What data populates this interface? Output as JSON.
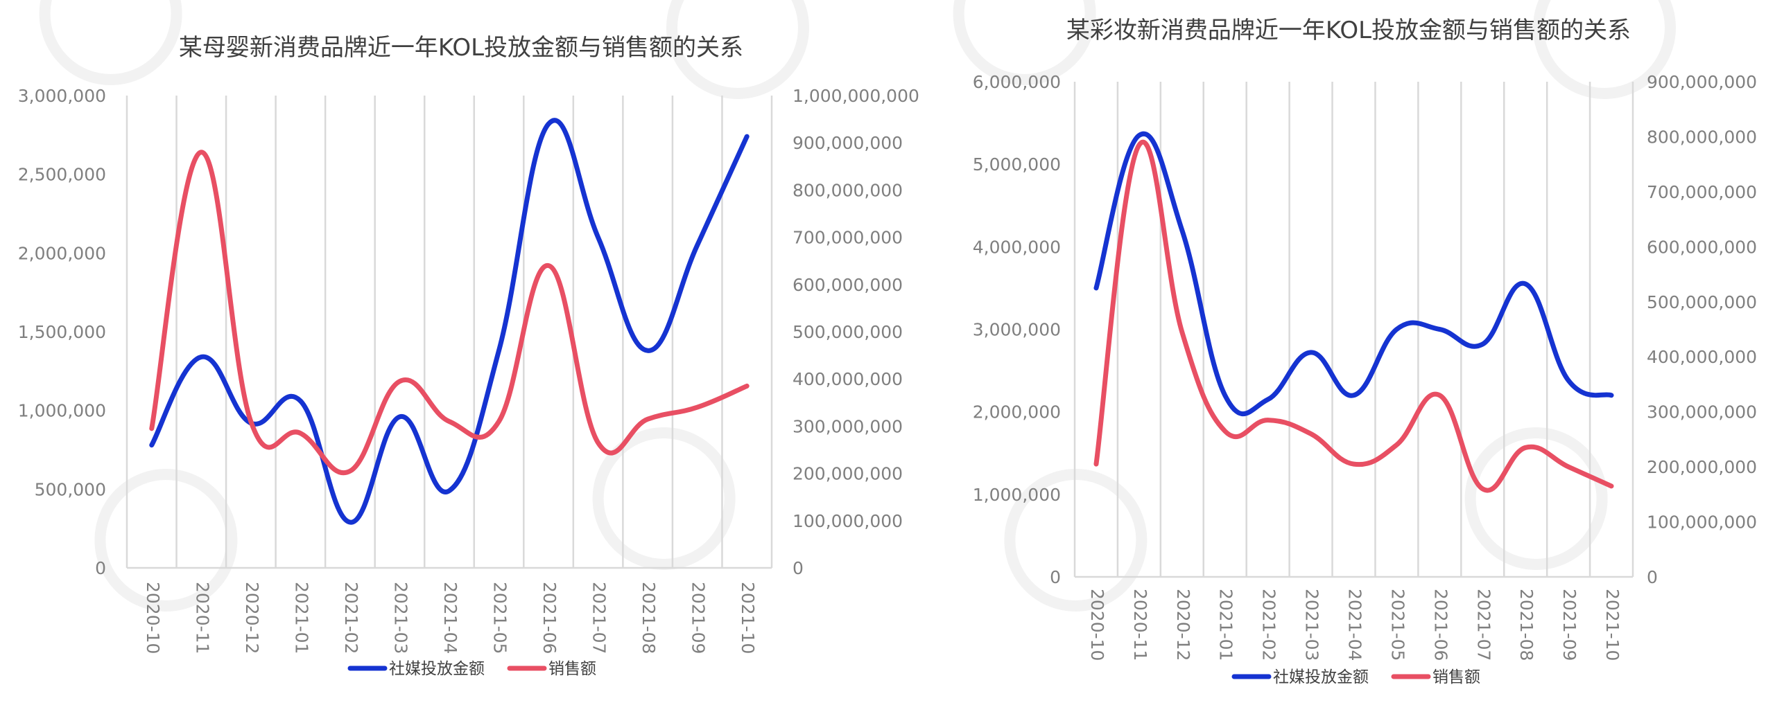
{
  "chart_data": [
    {
      "type": "line",
      "title": "某母婴新消费品牌近一年KOL投放金额与销售额的关系",
      "categories": [
        "2020-10",
        "2020-11",
        "2020-12",
        "2021-01",
        "2021-02",
        "2021-03",
        "2021-04",
        "2021-05",
        "2021-06",
        "2021-07",
        "2021-08",
        "2021-09",
        "2021-10"
      ],
      "y_left_ticks": [
        "0",
        "500,000",
        "1,000,000",
        "1,500,000",
        "2,000,000",
        "2,500,000",
        "3,000,000"
      ],
      "y_right_ticks": [
        "0",
        "100,000,000",
        "200,000,000",
        "300,000,000",
        "400,000,000",
        "500,000,000",
        "600,000,000",
        "700,000,000",
        "800,000,000",
        "900,000,000",
        "1,000,000,000"
      ],
      "ylim_left": [
        0,
        3000000
      ],
      "ylim_right": [
        0,
        1000000000
      ],
      "grid": "vertical",
      "legend_position": "bottom",
      "series": [
        {
          "name": "社媒投放金额",
          "axis": "left",
          "color": "#1533d1",
          "values": [
            780000,
            1340000,
            920000,
            1060000,
            290000,
            960000,
            490000,
            1380000,
            2820000,
            2100000,
            1380000,
            2050000,
            2740000
          ]
        },
        {
          "name": "销售额",
          "axis": "right",
          "color": "#e84f63",
          "values": [
            295000000,
            880000000,
            310000000,
            285000000,
            205000000,
            395000000,
            310000000,
            310000000,
            640000000,
            265000000,
            315000000,
            340000000,
            385000000
          ]
        }
      ]
    },
    {
      "type": "line",
      "title": "某彩妆新消费品牌近一年KOL投放金额与销售额的关系",
      "categories": [
        "2020-10",
        "2020-11",
        "2020-12",
        "2021-01",
        "2021-02",
        "2021-03",
        "2021-04",
        "2021-05",
        "2021-06",
        "2021-07",
        "2021-08",
        "2021-09",
        "2021-10"
      ],
      "y_left_ticks": [
        "0",
        "1,000,000",
        "2,000,000",
        "3,000,000",
        "4,000,000",
        "5,000,000",
        "6,000,000"
      ],
      "y_right_ticks": [
        "0",
        "100,000,000",
        "200,000,000",
        "300,000,000",
        "400,000,000",
        "500,000,000",
        "600,000,000",
        "700,000,000",
        "800,000,000",
        "900,000,000"
      ],
      "ylim_left": [
        0,
        6000000
      ],
      "ylim_right": [
        0,
        900000000
      ],
      "grid": "vertical",
      "legend_position": "bottom",
      "series": [
        {
          "name": "社媒投放金额",
          "axis": "left",
          "color": "#1533d1",
          "values": [
            3500000,
            5350000,
            4200000,
            2200000,
            2150000,
            2720000,
            2200000,
            3000000,
            3000000,
            2820000,
            3550000,
            2380000,
            2200000
          ]
        },
        {
          "name": "销售额",
          "axis": "right",
          "color": "#e84f63",
          "values": [
            205000000,
            785000000,
            445000000,
            265000000,
            285000000,
            260000000,
            205000000,
            240000000,
            330000000,
            160000000,
            235000000,
            200000000,
            165000000
          ]
        }
      ]
    }
  ]
}
